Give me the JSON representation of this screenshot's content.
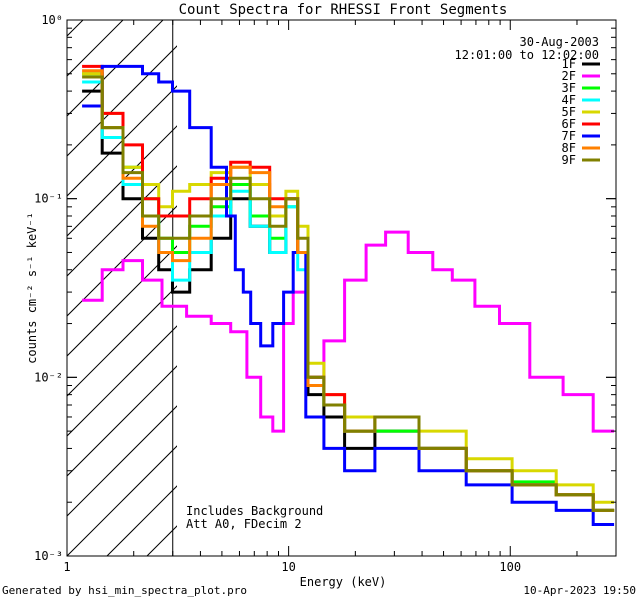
{
  "chart_data": {
    "type": "line",
    "title": "Count Spectra for RHESSI Front Segments",
    "xlabel": "Energy (keV)",
    "ylabel": "counts cm⁻² s⁻¹ keV⁻¹",
    "xscale": "log",
    "yscale": "log",
    "xlim": [
      1,
      300
    ],
    "ylim": [
      0.001,
      1
    ],
    "x_tick_labels": [
      "1",
      "10",
      "100"
    ],
    "y_tick_labels": [
      "10⁻³",
      "10⁻²",
      "10⁻¹",
      "10⁰"
    ],
    "annotations": {
      "date": "30-Aug-2003",
      "time_range": "12:01:00 to 12:02:00",
      "note_line1": "Includes Background",
      "note_line2": "Att A0, FDecim 2"
    },
    "hatched_region": {
      "x": [
        1,
        3
      ]
    },
    "legend_position": "top-right",
    "series": [
      {
        "name": "1F",
        "color": "#000000",
        "points": [
          [
            1.3,
            0.4
          ],
          [
            1.6,
            0.18
          ],
          [
            2.0,
            0.1
          ],
          [
            2.4,
            0.06
          ],
          [
            2.8,
            0.04
          ],
          [
            3.2,
            0.03
          ],
          [
            4.0,
            0.04
          ],
          [
            5.0,
            0.06
          ],
          [
            6.0,
            0.1
          ],
          [
            7.5,
            0.07
          ],
          [
            9.0,
            0.05
          ],
          [
            10.5,
            0.1
          ],
          [
            11.5,
            0.05
          ],
          [
            13,
            0.008
          ],
          [
            16,
            0.006
          ],
          [
            20,
            0.004
          ],
          [
            30,
            0.005
          ],
          [
            50,
            0.004
          ],
          [
            80,
            0.003
          ],
          [
            130,
            0.0025
          ],
          [
            200,
            0.0022
          ],
          [
            280,
            0.0018
          ]
        ]
      },
      {
        "name": "2F",
        "color": "#ff00ff",
        "points": [
          [
            1.3,
            0.027
          ],
          [
            1.6,
            0.04
          ],
          [
            2.0,
            0.045
          ],
          [
            2.4,
            0.035
          ],
          [
            3.0,
            0.025
          ],
          [
            4.0,
            0.022
          ],
          [
            5.0,
            0.02
          ],
          [
            6.0,
            0.018
          ],
          [
            7.0,
            0.01
          ],
          [
            8.0,
            0.006
          ],
          [
            9.0,
            0.005
          ],
          [
            10,
            0.02
          ],
          [
            11,
            0.03
          ],
          [
            13,
            0.01
          ],
          [
            16,
            0.016
          ],
          [
            20,
            0.035
          ],
          [
            25,
            0.055
          ],
          [
            30,
            0.065
          ],
          [
            40,
            0.05
          ],
          [
            50,
            0.04
          ],
          [
            60,
            0.035
          ],
          [
            80,
            0.025
          ],
          [
            100,
            0.02
          ],
          [
            150,
            0.01
          ],
          [
            200,
            0.008
          ],
          [
            280,
            0.005
          ]
        ]
      },
      {
        "name": "3F",
        "color": "#00ff00",
        "points": [
          [
            1.3,
            0.5
          ],
          [
            1.6,
            0.25
          ],
          [
            2.0,
            0.15
          ],
          [
            2.4,
            0.1
          ],
          [
            2.8,
            0.06
          ],
          [
            3.2,
            0.05
          ],
          [
            4.0,
            0.07
          ],
          [
            5.0,
            0.09
          ],
          [
            6.0,
            0.12
          ],
          [
            7.5,
            0.08
          ],
          [
            9.0,
            0.06
          ],
          [
            10.5,
            0.09
          ],
          [
            11.5,
            0.05
          ],
          [
            13,
            0.01
          ],
          [
            16,
            0.007
          ],
          [
            20,
            0.005
          ],
          [
            30,
            0.005
          ],
          [
            50,
            0.004
          ],
          [
            80,
            0.003
          ],
          [
            130,
            0.0026
          ],
          [
            200,
            0.0022
          ],
          [
            280,
            0.0018
          ]
        ]
      },
      {
        "name": "4F",
        "color": "#00ffff",
        "points": [
          [
            1.3,
            0.45
          ],
          [
            1.6,
            0.22
          ],
          [
            2.0,
            0.12
          ],
          [
            2.4,
            0.08
          ],
          [
            2.8,
            0.05
          ],
          [
            3.2,
            0.035
          ],
          [
            4.0,
            0.05
          ],
          [
            5.0,
            0.08
          ],
          [
            6.0,
            0.11
          ],
          [
            7.5,
            0.07
          ],
          [
            9.0,
            0.05
          ],
          [
            10.5,
            0.09
          ],
          [
            11.5,
            0.04
          ],
          [
            13,
            0.009
          ],
          [
            16,
            0.007
          ],
          [
            20,
            0.005
          ],
          [
            30,
            0.006
          ],
          [
            50,
            0.004
          ],
          [
            80,
            0.003
          ],
          [
            130,
            0.0025
          ],
          [
            200,
            0.0022
          ],
          [
            280,
            0.0018
          ]
        ]
      },
      {
        "name": "5F",
        "color": "#d8d800",
        "points": [
          [
            1.3,
            0.5
          ],
          [
            1.6,
            0.3
          ],
          [
            2.0,
            0.15
          ],
          [
            2.4,
            0.12
          ],
          [
            2.8,
            0.09
          ],
          [
            3.2,
            0.11
          ],
          [
            4.0,
            0.12
          ],
          [
            5.0,
            0.14
          ],
          [
            6.0,
            0.15
          ],
          [
            7.5,
            0.12
          ],
          [
            9.0,
            0.08
          ],
          [
            10.5,
            0.11
          ],
          [
            11.5,
            0.07
          ],
          [
            13,
            0.012
          ],
          [
            16,
            0.008
          ],
          [
            20,
            0.006
          ],
          [
            30,
            0.006
          ],
          [
            50,
            0.005
          ],
          [
            80,
            0.0035
          ],
          [
            130,
            0.003
          ],
          [
            200,
            0.0025
          ],
          [
            280,
            0.002
          ]
        ]
      },
      {
        "name": "6F",
        "color": "#ff0000",
        "points": [
          [
            1.3,
            0.55
          ],
          [
            1.6,
            0.3
          ],
          [
            2.0,
            0.2
          ],
          [
            2.4,
            0.1
          ],
          [
            2.8,
            0.08
          ],
          [
            3.2,
            0.08
          ],
          [
            4.0,
            0.1
          ],
          [
            5.0,
            0.13
          ],
          [
            6.0,
            0.16
          ],
          [
            7.5,
            0.15
          ],
          [
            9.0,
            0.1
          ],
          [
            10.5,
            0.1
          ],
          [
            11.5,
            0.05
          ],
          [
            13,
            0.01
          ],
          [
            16,
            0.008
          ],
          [
            20,
            0.005
          ],
          [
            30,
            0.006
          ],
          [
            50,
            0.004
          ],
          [
            80,
            0.003
          ],
          [
            130,
            0.0025
          ],
          [
            200,
            0.0022
          ],
          [
            280,
            0.0018
          ]
        ]
      },
      {
        "name": "7F",
        "color": "#0000ff",
        "points": [
          [
            1.3,
            0.33
          ],
          [
            1.6,
            0.55
          ],
          [
            2.0,
            0.55
          ],
          [
            2.4,
            0.5
          ],
          [
            2.8,
            0.45
          ],
          [
            3.2,
            0.4
          ],
          [
            4.0,
            0.25
          ],
          [
            5.0,
            0.15
          ],
          [
            5.5,
            0.08
          ],
          [
            6.0,
            0.04
          ],
          [
            6.5,
            0.03
          ],
          [
            7.0,
            0.02
          ],
          [
            8.0,
            0.015
          ],
          [
            9.0,
            0.02
          ],
          [
            10,
            0.03
          ],
          [
            11,
            0.05
          ],
          [
            13,
            0.006
          ],
          [
            16,
            0.004
          ],
          [
            20,
            0.003
          ],
          [
            30,
            0.004
          ],
          [
            50,
            0.003
          ],
          [
            80,
            0.0025
          ],
          [
            130,
            0.002
          ],
          [
            200,
            0.0018
          ],
          [
            280,
            0.0015
          ]
        ]
      },
      {
        "name": "8F",
        "color": "#ff8000",
        "points": [
          [
            1.3,
            0.52
          ],
          [
            1.6,
            0.25
          ],
          [
            2.0,
            0.13
          ],
          [
            2.4,
            0.07
          ],
          [
            2.8,
            0.05
          ],
          [
            3.2,
            0.045
          ],
          [
            4.0,
            0.06
          ],
          [
            5.0,
            0.12
          ],
          [
            6.0,
            0.15
          ],
          [
            7.5,
            0.14
          ],
          [
            9.0,
            0.09
          ],
          [
            10.5,
            0.1
          ],
          [
            11.5,
            0.05
          ],
          [
            13,
            0.009
          ],
          [
            16,
            0.007
          ],
          [
            20,
            0.005
          ],
          [
            30,
            0.006
          ],
          [
            50,
            0.004
          ],
          [
            80,
            0.003
          ],
          [
            130,
            0.0025
          ],
          [
            200,
            0.0022
          ],
          [
            280,
            0.0018
          ]
        ]
      },
      {
        "name": "9F",
        "color": "#808000",
        "points": [
          [
            1.3,
            0.48
          ],
          [
            1.6,
            0.25
          ],
          [
            2.0,
            0.14
          ],
          [
            2.4,
            0.08
          ],
          [
            2.8,
            0.06
          ],
          [
            3.2,
            0.06
          ],
          [
            4.0,
            0.08
          ],
          [
            5.0,
            0.1
          ],
          [
            6.0,
            0.13
          ],
          [
            7.5,
            0.1
          ],
          [
            9.0,
            0.07
          ],
          [
            10.5,
            0.1
          ],
          [
            11.5,
            0.06
          ],
          [
            13,
            0.01
          ],
          [
            16,
            0.007
          ],
          [
            20,
            0.005
          ],
          [
            30,
            0.006
          ],
          [
            50,
            0.004
          ],
          [
            80,
            0.003
          ],
          [
            130,
            0.0025
          ],
          [
            200,
            0.0022
          ],
          [
            280,
            0.0018
          ]
        ]
      }
    ]
  },
  "footer": {
    "left": "Generated by hsi_min_spectra_plot.pro",
    "right": "10-Apr-2023 19:50"
  }
}
